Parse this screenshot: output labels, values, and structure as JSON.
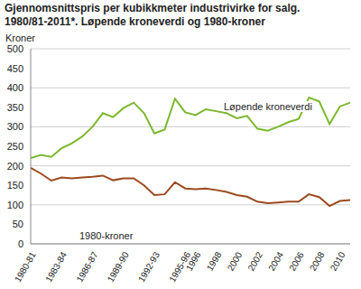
{
  "chart_data": {
    "type": "line",
    "title": "Gjennomsnittspris per kubikkmeter industrivirke for salg. 1980/81-2011*. Løpende kroneverdi og 1980-kroner",
    "y_label": "Kroner",
    "categories": [
      "1980-81",
      null,
      null,
      "1983-84",
      null,
      null,
      "1986-87",
      null,
      null,
      "1989-90",
      null,
      null,
      "1992-93",
      null,
      null,
      "1995-96",
      "1996",
      null,
      "1998",
      null,
      "2000",
      null,
      "2002",
      null,
      "2004",
      null,
      "2006",
      null,
      "2008",
      null,
      "2010",
      null
    ],
    "series": [
      {
        "name": "Løpende kroneverdi",
        "color": "#7cb82f",
        "values": [
          220,
          228,
          223,
          245,
          258,
          275,
          300,
          335,
          325,
          348,
          362,
          335,
          283,
          293,
          372,
          337,
          330,
          345,
          340,
          335,
          322,
          328,
          295,
          290,
          300,
          312,
          320,
          375,
          365,
          307,
          352,
          362
        ]
      },
      {
        "name": "1980-kroner",
        "color": "#9c4a1e",
        "values": [
          195,
          180,
          162,
          170,
          168,
          170,
          172,
          175,
          163,
          168,
          168,
          150,
          125,
          127,
          158,
          142,
          140,
          142,
          138,
          133,
          125,
          121,
          108,
          104,
          106,
          108,
          108,
          127,
          120,
          97,
          110,
          112
        ]
      }
    ],
    "ylim": [
      0,
      500
    ],
    "yticks": [
      0,
      50,
      100,
      150,
      200,
      250,
      300,
      350,
      400,
      450,
      500
    ],
    "grid": true
  }
}
